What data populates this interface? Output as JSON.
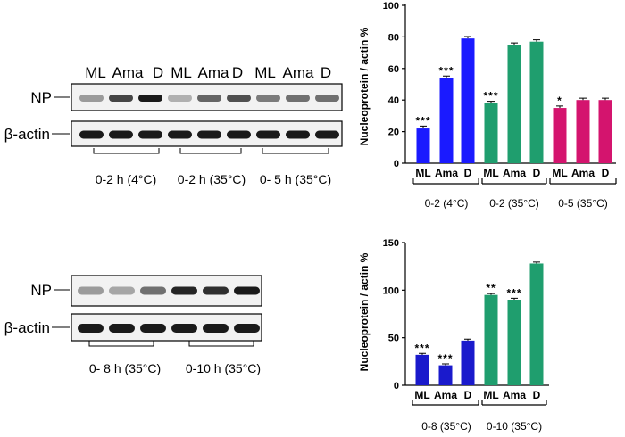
{
  "blots": {
    "top": {
      "lane_headers": [
        "ML",
        "Ama",
        "D",
        "ML",
        "Ama",
        "D",
        "ML",
        "Ama",
        "D"
      ],
      "rows": [
        "NP",
        "β-actin"
      ],
      "groups": [
        "0-2 h (4°C)",
        "0-2 h (35°C)",
        "0- 5  h (35°C)"
      ],
      "np_intensity": [
        0.35,
        0.75,
        0.95,
        0.25,
        0.6,
        0.7,
        0.5,
        0.55,
        0.55
      ]
    },
    "bottom": {
      "rows": [
        "NP",
        "β-actin"
      ],
      "groups": [
        "0- 8  h (35°C)",
        "0-10 h (35°C)"
      ],
      "np_intensity": [
        0.35,
        0.3,
        0.55,
        0.9,
        0.85,
        0.95
      ]
    }
  },
  "chart_data": [
    {
      "type": "bar",
      "ylabel": "Nucleoprotein / actin %",
      "ylim": [
        0,
        100
      ],
      "yticks": [
        0,
        20,
        40,
        60,
        80,
        100
      ],
      "categories": [
        "ML",
        "Ama",
        "D",
        "ML",
        "Ama",
        "D",
        "ML",
        "Ama",
        "D"
      ],
      "groups": [
        "0-2 (4°C)",
        "0-2 (35°C)",
        "0-5 (35°C)"
      ],
      "values": [
        22,
        54,
        79,
        38,
        75,
        77,
        35,
        40,
        40
      ],
      "errors": [
        1.5,
        1.2,
        1.2,
        1.2,
        1.2,
        1.2,
        1.2,
        1.2,
        1.2
      ],
      "annotations": [
        "***",
        "***",
        "",
        "***",
        "",
        "",
        "*",
        "",
        ""
      ],
      "colors": [
        "#1a1aff",
        "#1a1aff",
        "#1a1aff",
        "#1f9e6e",
        "#1f9e6e",
        "#1f9e6e",
        "#d4146e",
        "#d4146e",
        "#d4146e"
      ]
    },
    {
      "type": "bar",
      "ylabel": "Nucleoprotein / actin %",
      "ylim": [
        0,
        150
      ],
      "yticks": [
        0,
        50,
        100,
        150
      ],
      "categories": [
        "ML",
        "Ama",
        "D",
        "ML",
        "Ama",
        "D"
      ],
      "groups": [
        "0-8 (35°C)",
        "0-10 (35°C)"
      ],
      "values": [
        32,
        21,
        47,
        95,
        90,
        128
      ],
      "errors": [
        1.5,
        1.5,
        1.5,
        1.5,
        1.5,
        1.5
      ],
      "annotations": [
        "***",
        "***",
        "",
        "**",
        "***",
        ""
      ],
      "colors": [
        "#1a1acc",
        "#1a1acc",
        "#1a1acc",
        "#1f9e6e",
        "#1f9e6e",
        "#1f9e6e"
      ]
    }
  ]
}
